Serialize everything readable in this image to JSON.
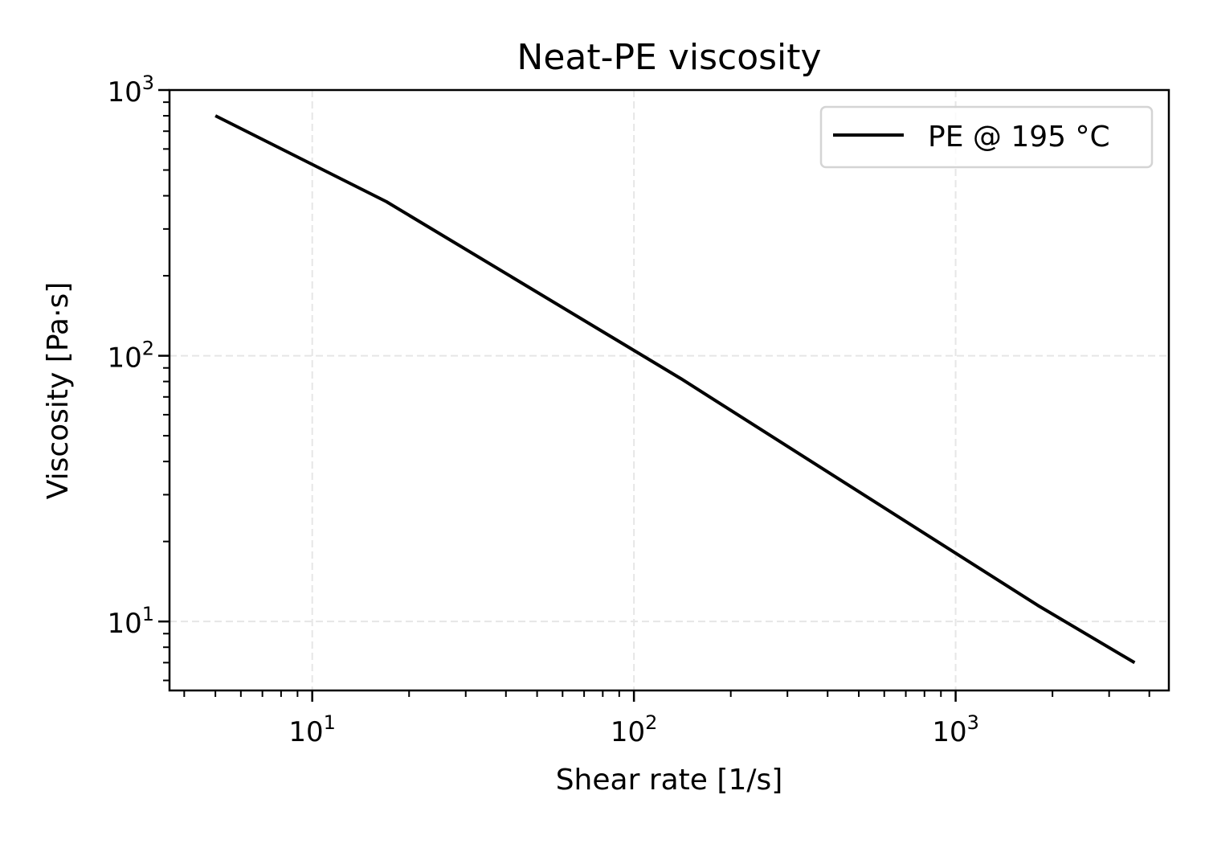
{
  "chart_data": {
    "type": "line",
    "title": "Neat-PE viscosity",
    "xlabel": "Shear rate [1/s]",
    "ylabel": "Viscosity [Pa·s]",
    "xscale": "log",
    "yscale": "log",
    "xlim": [
      3.6,
      4600
    ],
    "ylim": [
      5.5,
      1000
    ],
    "grid": true,
    "legend_position": "top-right",
    "x_ticks": [
      {
        "value": 10,
        "base": "10",
        "exp": "1"
      },
      {
        "value": 100,
        "base": "10",
        "exp": "2"
      },
      {
        "value": 1000,
        "base": "10",
        "exp": "3"
      }
    ],
    "y_ticks": [
      {
        "value": 10,
        "base": "10",
        "exp": "1"
      },
      {
        "value": 100,
        "base": "10",
        "exp": "2"
      },
      {
        "value": 1000,
        "base": "10",
        "exp": "3"
      }
    ],
    "series": [
      {
        "name": "PE @ 195 °C",
        "color": "#000000",
        "x": [
          5,
          17,
          140,
          1800,
          3600
        ],
        "y": [
          800,
          380,
          82,
          11.5,
          7
        ]
      }
    ]
  }
}
